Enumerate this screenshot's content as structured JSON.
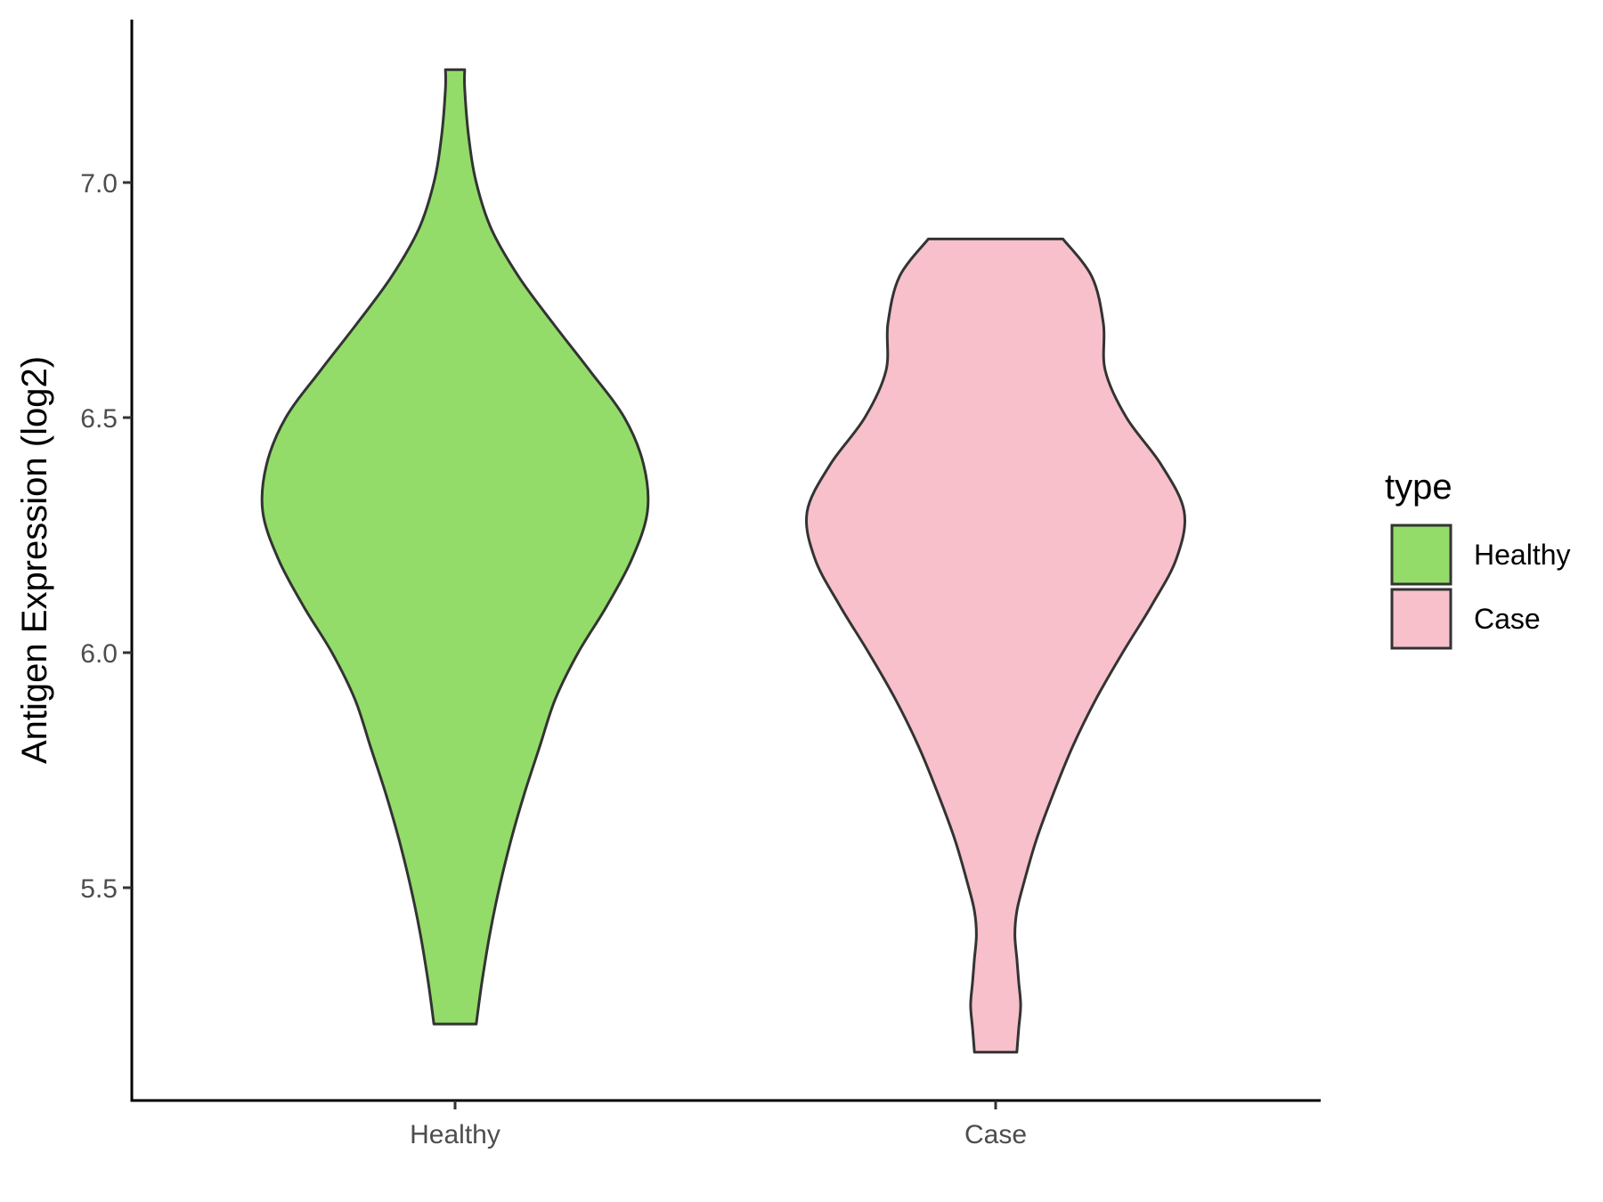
{
  "chart_data": {
    "type": "violin",
    "ylabel": "Antigen Expression (log2)",
    "xlabel": "",
    "categories": [
      "Healthy",
      "Case"
    ],
    "y_ticks": [
      "5.5",
      "6.0",
      "6.5",
      "7.0"
    ],
    "ylim": [
      5.07,
      7.37
    ],
    "grid": false,
    "legend": {
      "title": "type",
      "position": "right",
      "entries": [
        "Healthy",
        "Case"
      ]
    },
    "series": [
      {
        "category": "Healthy",
        "color": "#93dc6a",
        "min": 5.21,
        "max": 7.24,
        "density_profile": [
          [
            5.21,
            0.11
          ],
          [
            5.3,
            0.14
          ],
          [
            5.4,
            0.18
          ],
          [
            5.5,
            0.23
          ],
          [
            5.6,
            0.29
          ],
          [
            5.7,
            0.36
          ],
          [
            5.8,
            0.44
          ],
          [
            5.9,
            0.52
          ],
          [
            6.0,
            0.64
          ],
          [
            6.1,
            0.79
          ],
          [
            6.2,
            0.92
          ],
          [
            6.3,
            1.0
          ],
          [
            6.4,
            0.98
          ],
          [
            6.5,
            0.88
          ],
          [
            6.6,
            0.7
          ],
          [
            6.7,
            0.51
          ],
          [
            6.8,
            0.33
          ],
          [
            6.9,
            0.19
          ],
          [
            7.0,
            0.11
          ],
          [
            7.1,
            0.07
          ],
          [
            7.2,
            0.05
          ],
          [
            7.24,
            0.05
          ]
        ]
      },
      {
        "category": "Case",
        "color": "#f7c0cb",
        "min": 5.15,
        "max": 6.88,
        "density_profile": [
          [
            5.15,
            0.11
          ],
          [
            5.2,
            0.12
          ],
          [
            5.25,
            0.13
          ],
          [
            5.3,
            0.12
          ],
          [
            5.35,
            0.11
          ],
          [
            5.4,
            0.1
          ],
          [
            5.45,
            0.11
          ],
          [
            5.5,
            0.14
          ],
          [
            5.6,
            0.21
          ],
          [
            5.7,
            0.3
          ],
          [
            5.8,
            0.4
          ],
          [
            5.9,
            0.52
          ],
          [
            6.0,
            0.66
          ],
          [
            6.1,
            0.81
          ],
          [
            6.2,
            0.94
          ],
          [
            6.3,
            0.98
          ],
          [
            6.4,
            0.86
          ],
          [
            6.5,
            0.68
          ],
          [
            6.6,
            0.57
          ],
          [
            6.7,
            0.56
          ],
          [
            6.8,
            0.5
          ],
          [
            6.88,
            0.35
          ]
        ]
      }
    ]
  }
}
